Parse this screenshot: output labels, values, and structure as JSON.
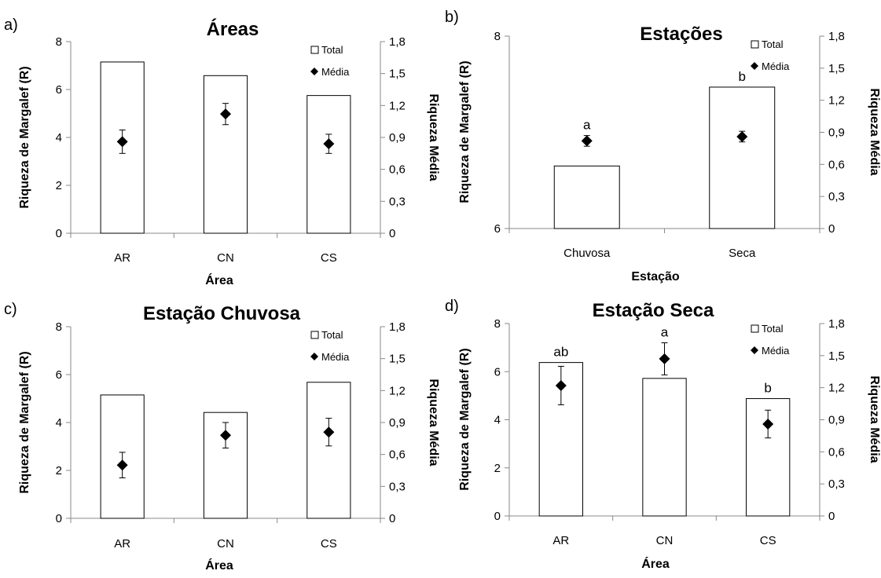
{
  "chart_data": [
    {
      "panel_letter": "a)",
      "type": "bar+scatter",
      "title": "Áreas",
      "xlabel": "Área",
      "ylabel": "Riqueza de Margalef (R)",
      "ylabel_right": "Riqueza Média",
      "categories": [
        "AR",
        "CN",
        "CS"
      ],
      "ylim": [
        0,
        8
      ],
      "yticks": [
        "0",
        "2",
        "4",
        "6",
        "8"
      ],
      "ylim_right": [
        0,
        1.8
      ],
      "yticks_right": [
        "0",
        "0,3",
        "0,6",
        "0,9",
        "1,2",
        "1,5",
        "1,8"
      ],
      "legend": {
        "position": "top-right",
        "entries": [
          "Total",
          "Média"
        ]
      },
      "series": [
        {
          "name": "Total",
          "type": "bar",
          "axis": "left",
          "values": [
            7.15,
            6.58,
            5.75
          ]
        },
        {
          "name": "Média",
          "type": "scatter",
          "axis": "right",
          "values": [
            0.86,
            1.12,
            0.84
          ],
          "error": [
            0.11,
            0.1,
            0.09
          ]
        }
      ],
      "annotations": []
    },
    {
      "panel_letter": "b)",
      "type": "bar+scatter",
      "title": "Estações",
      "xlabel": "Estação",
      "ylabel": "Riqueza de Margalef (R)",
      "ylabel_right": "Riqueza Média",
      "categories": [
        "Chuvosa",
        "Seca"
      ],
      "ylim": [
        6,
        8
      ],
      "yticks": [
        "6",
        "8"
      ],
      "ylim_right": [
        0,
        1.8
      ],
      "yticks_right": [
        "0",
        "0,3",
        "0,6",
        "0,9",
        "1,2",
        "1,5",
        "1,8"
      ],
      "legend": {
        "position": "top-right",
        "entries": [
          "Total",
          "Média"
        ]
      },
      "series": [
        {
          "name": "Total",
          "type": "bar",
          "axis": "left",
          "values": [
            6.65,
            7.47
          ]
        },
        {
          "name": "Média",
          "type": "scatter",
          "axis": "right",
          "values": [
            0.82,
            0.86
          ],
          "error": [
            0.05,
            0.05
          ]
        }
      ],
      "annotations": [
        "a",
        "b"
      ]
    },
    {
      "panel_letter": "c)",
      "type": "bar+scatter",
      "title": "Estação Chuvosa",
      "xlabel": "Área",
      "ylabel": "Riqueza de Margalef (R)",
      "ylabel_right": "Riqueza Média",
      "categories": [
        "AR",
        "CN",
        "CS"
      ],
      "ylim": [
        0,
        8
      ],
      "yticks": [
        "0",
        "2",
        "4",
        "6",
        "8"
      ],
      "ylim_right": [
        0,
        1.8
      ],
      "yticks_right": [
        "0",
        "0,3",
        "0,6",
        "0,9",
        "1,2",
        "1,5",
        "1,8"
      ],
      "legend": {
        "position": "top-right",
        "entries": [
          "Total",
          "Média"
        ]
      },
      "series": [
        {
          "name": "Total",
          "type": "bar",
          "axis": "left",
          "values": [
            5.15,
            4.42,
            5.68
          ]
        },
        {
          "name": "Média",
          "type": "scatter",
          "axis": "right",
          "values": [
            0.5,
            0.78,
            0.81
          ],
          "error": [
            0.12,
            0.12,
            0.13
          ]
        }
      ],
      "annotations": []
    },
    {
      "panel_letter": "d)",
      "type": "bar+scatter",
      "title": "Estação Seca",
      "xlabel": "Área",
      "ylabel": "Riqueza de Margalef (R)",
      "ylabel_right": "Riqueza Média",
      "categories": [
        "AR",
        "CN",
        "CS"
      ],
      "ylim": [
        0,
        8
      ],
      "yticks": [
        "0",
        "2",
        "4",
        "6",
        "8"
      ],
      "ylim_right": [
        0,
        1.8
      ],
      "yticks_right": [
        "0",
        "0,3",
        "0,6",
        "0,9",
        "1,2",
        "1,5",
        "1,8"
      ],
      "legend": {
        "position": "top-right",
        "entries": [
          "Total",
          "Média"
        ]
      },
      "series": [
        {
          "name": "Total",
          "type": "bar",
          "axis": "left",
          "values": [
            6.38,
            5.72,
            4.88
          ]
        },
        {
          "name": "Média",
          "type": "scatter",
          "axis": "right",
          "values": [
            1.22,
            1.47,
            0.86
          ],
          "error": [
            0.18,
            0.15,
            0.13
          ]
        }
      ],
      "annotations": [
        "ab",
        "a",
        "b"
      ]
    }
  ]
}
